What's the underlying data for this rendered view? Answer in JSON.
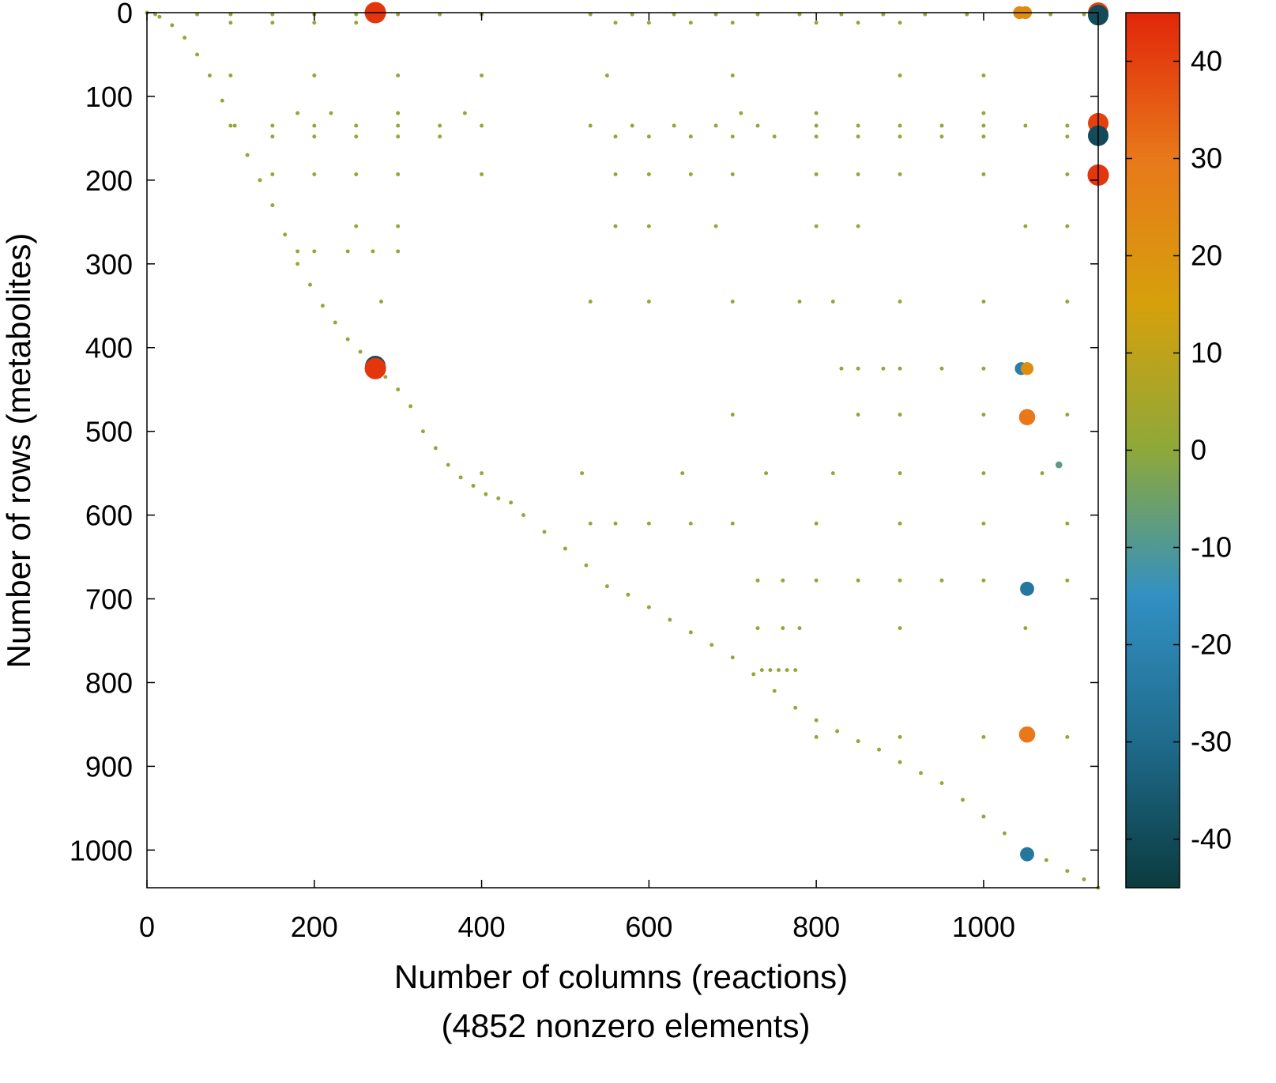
{
  "chart_data": {
    "type": "scatter",
    "xlabel": "Number of columns (reactions)",
    "xlabel_note": "(4852 nonzero elements)",
    "ylabel": "Number of rows (metabolites)",
    "xlim": [
      0,
      1137
    ],
    "ylim": [
      0,
      1045
    ],
    "y_inverted": true,
    "xticks": [
      0,
      200,
      400,
      600,
      800,
      1000
    ],
    "yticks": [
      0,
      100,
      200,
      300,
      400,
      500,
      600,
      700,
      800,
      900,
      1000
    ],
    "clim": [
      -45,
      45
    ],
    "cticks": [
      -40,
      -30,
      -20,
      -10,
      0,
      10,
      20,
      30,
      40
    ],
    "colormap": [
      "#0b3b3f",
      "#1f6b8c",
      "#3290c2",
      "#8ea83a",
      "#d6a00c",
      "#e8781a",
      "#e2260a"
    ],
    "series": [
      {
        "x": [
          10,
          60,
          100,
          150,
          200,
          250,
          300,
          350,
          400,
          530,
          580,
          630,
          680,
          730,
          780,
          830,
          880,
          930,
          980,
          1080,
          1120,
          100,
          150,
          200,
          250,
          560,
          600,
          650,
          700,
          800,
          850,
          900,
          100,
          150,
          200,
          250,
          300,
          350,
          400,
          530,
          580,
          630,
          680,
          730,
          800,
          850,
          900,
          950,
          1000,
          1050,
          1100,
          150,
          200,
          250,
          300,
          350,
          560,
          600,
          650,
          700,
          750,
          800,
          850,
          900,
          950,
          1000,
          1100,
          150,
          200,
          250,
          300,
          400,
          560,
          600,
          650,
          700,
          800,
          850,
          900,
          1000,
          1100,
          100,
          200,
          300,
          400,
          550,
          700,
          900,
          1000,
          180,
          220,
          300,
          380,
          710,
          800,
          1000,
          250,
          300,
          560,
          600,
          680,
          800,
          850,
          1050,
          1100,
          180,
          200,
          240,
          270,
          300,
          280,
          530,
          600,
          700,
          780,
          820,
          900,
          1000,
          1100,
          830,
          850,
          880,
          900,
          950,
          1000,
          700,
          850,
          900,
          1000,
          1100,
          400,
          520,
          640,
          740,
          820,
          900,
          1000,
          1070,
          530,
          560,
          600,
          650,
          700,
          800,
          900,
          1000,
          1100,
          730,
          760,
          800,
          850,
          900,
          950,
          1000,
          1100,
          730,
          760,
          780,
          900,
          1050,
          735,
          745,
          755,
          765,
          775,
          800,
          900,
          1000,
          1100,
          0,
          15,
          30,
          45,
          60,
          75,
          90,
          105,
          120,
          135,
          150,
          165,
          180,
          195,
          210,
          225,
          240,
          255,
          270,
          285,
          300,
          315,
          330,
          345,
          360,
          375,
          390,
          405,
          420,
          435,
          450,
          475,
          500,
          525,
          550,
          575,
          600,
          625,
          650,
          675,
          700,
          725,
          750,
          775,
          800,
          825,
          850,
          875,
          900,
          925,
          950,
          975,
          1000,
          1025,
          1050,
          1075,
          1100,
          1120,
          1137
        ],
        "y": [
          2,
          2,
          2,
          2,
          2,
          2,
          2,
          2,
          2,
          2,
          2,
          2,
          2,
          2,
          2,
          2,
          2,
          2,
          2,
          2,
          2,
          12,
          12,
          12,
          12,
          12,
          12,
          12,
          12,
          12,
          12,
          12,
          135,
          135,
          135,
          135,
          135,
          135,
          135,
          135,
          135,
          135,
          135,
          135,
          135,
          135,
          135,
          135,
          135,
          135,
          135,
          148,
          148,
          148,
          148,
          148,
          148,
          148,
          148,
          148,
          148,
          148,
          148,
          148,
          148,
          148,
          148,
          193,
          193,
          193,
          193,
          193,
          193,
          193,
          193,
          193,
          193,
          193,
          193,
          193,
          193,
          75,
          75,
          75,
          75,
          75,
          75,
          75,
          75,
          120,
          120,
          120,
          120,
          120,
          120,
          120,
          255,
          255,
          255,
          255,
          255,
          255,
          255,
          255,
          255,
          285,
          285,
          285,
          285,
          285,
          345,
          345,
          345,
          345,
          345,
          345,
          345,
          345,
          345,
          425,
          425,
          425,
          425,
          425,
          425,
          480,
          480,
          480,
          480,
          480,
          550,
          550,
          550,
          550,
          550,
          550,
          550,
          550,
          610,
          610,
          610,
          610,
          610,
          610,
          610,
          610,
          610,
          678,
          678,
          678,
          678,
          678,
          678,
          678,
          678,
          735,
          735,
          735,
          735,
          735,
          785,
          785,
          785,
          785,
          785,
          865,
          865,
          865,
          865,
          0,
          5,
          15,
          30,
          50,
          75,
          105,
          135,
          170,
          200,
          230,
          265,
          300,
          325,
          350,
          370,
          390,
          405,
          420,
          435,
          450,
          470,
          500,
          520,
          540,
          555,
          565,
          575,
          580,
          585,
          600,
          620,
          640,
          660,
          685,
          695,
          710,
          725,
          740,
          755,
          770,
          790,
          810,
          830,
          845,
          858,
          870,
          880,
          895,
          908,
          920,
          940,
          960,
          980,
          1000,
          1012,
          1025,
          1035,
          1045
        ],
        "c": [
          1,
          1,
          1,
          1,
          1,
          1,
          1,
          1,
          1,
          1,
          1,
          1,
          1,
          1,
          1,
          1,
          1,
          1,
          1,
          1,
          1,
          1,
          1,
          1,
          1,
          1,
          1,
          1,
          1,
          1,
          1,
          1,
          1,
          1,
          1,
          1,
          1,
          1,
          1,
          1,
          1,
          1,
          1,
          1,
          1,
          1,
          1,
          1,
          1,
          1,
          1,
          1,
          1,
          1,
          1,
          1,
          1,
          1,
          1,
          1,
          1,
          1,
          1,
          1,
          1,
          1,
          1,
          1,
          1,
          1,
          1,
          1,
          1,
          1,
          1,
          1,
          1,
          1,
          1,
          1,
          1,
          1,
          1,
          1,
          1,
          1,
          1,
          1,
          1,
          1,
          1,
          1,
          1,
          1,
          1,
          1,
          1,
          1,
          1,
          1,
          1,
          1,
          1,
          1,
          1,
          1,
          1,
          1,
          1,
          1,
          1,
          1,
          1,
          1,
          1,
          1,
          1,
          1,
          1,
          1,
          1,
          1,
          1,
          1,
          1,
          1,
          1,
          1,
          1,
          1,
          1,
          1,
          1,
          1,
          1,
          1,
          1,
          1,
          1,
          1,
          1,
          1,
          1,
          1,
          1,
          1,
          1,
          1,
          1,
          1,
          1,
          1,
          1,
          1,
          1,
          1,
          1,
          1,
          1,
          1,
          1,
          1,
          1,
          1,
          1,
          1,
          1,
          1,
          1,
          1,
          1,
          1,
          1,
          1,
          1,
          1,
          1,
          1,
          1,
          1,
          1,
          1,
          1,
          1,
          1,
          1,
          1,
          1,
          1,
          1,
          1,
          1,
          1,
          1,
          1,
          1,
          1,
          1,
          1,
          1,
          1,
          1,
          1,
          1,
          1,
          1,
          1,
          1,
          1,
          1,
          1,
          1,
          1,
          1,
          1,
          1,
          1,
          1,
          1,
          1,
          1,
          1,
          1,
          1,
          1,
          1,
          1,
          1
        ]
      },
      {
        "x": [
          273,
          1043,
          1050,
          1137,
          1137,
          1137,
          1137,
          1137,
          273,
          273,
          1045,
          1052,
          1052,
          1052,
          1052,
          1052,
          1090
        ],
        "y": [
          0,
          0,
          0,
          0,
          3,
          132,
          147,
          194,
          422,
          425,
          425,
          425,
          483,
          688,
          862,
          1005,
          540
        ],
        "c": [
          42,
          22,
          22,
          40,
          -40,
          40,
          -40,
          42,
          -40,
          42,
          -22,
          22,
          30,
          -25,
          30,
          -25,
          -8
        ]
      }
    ]
  }
}
